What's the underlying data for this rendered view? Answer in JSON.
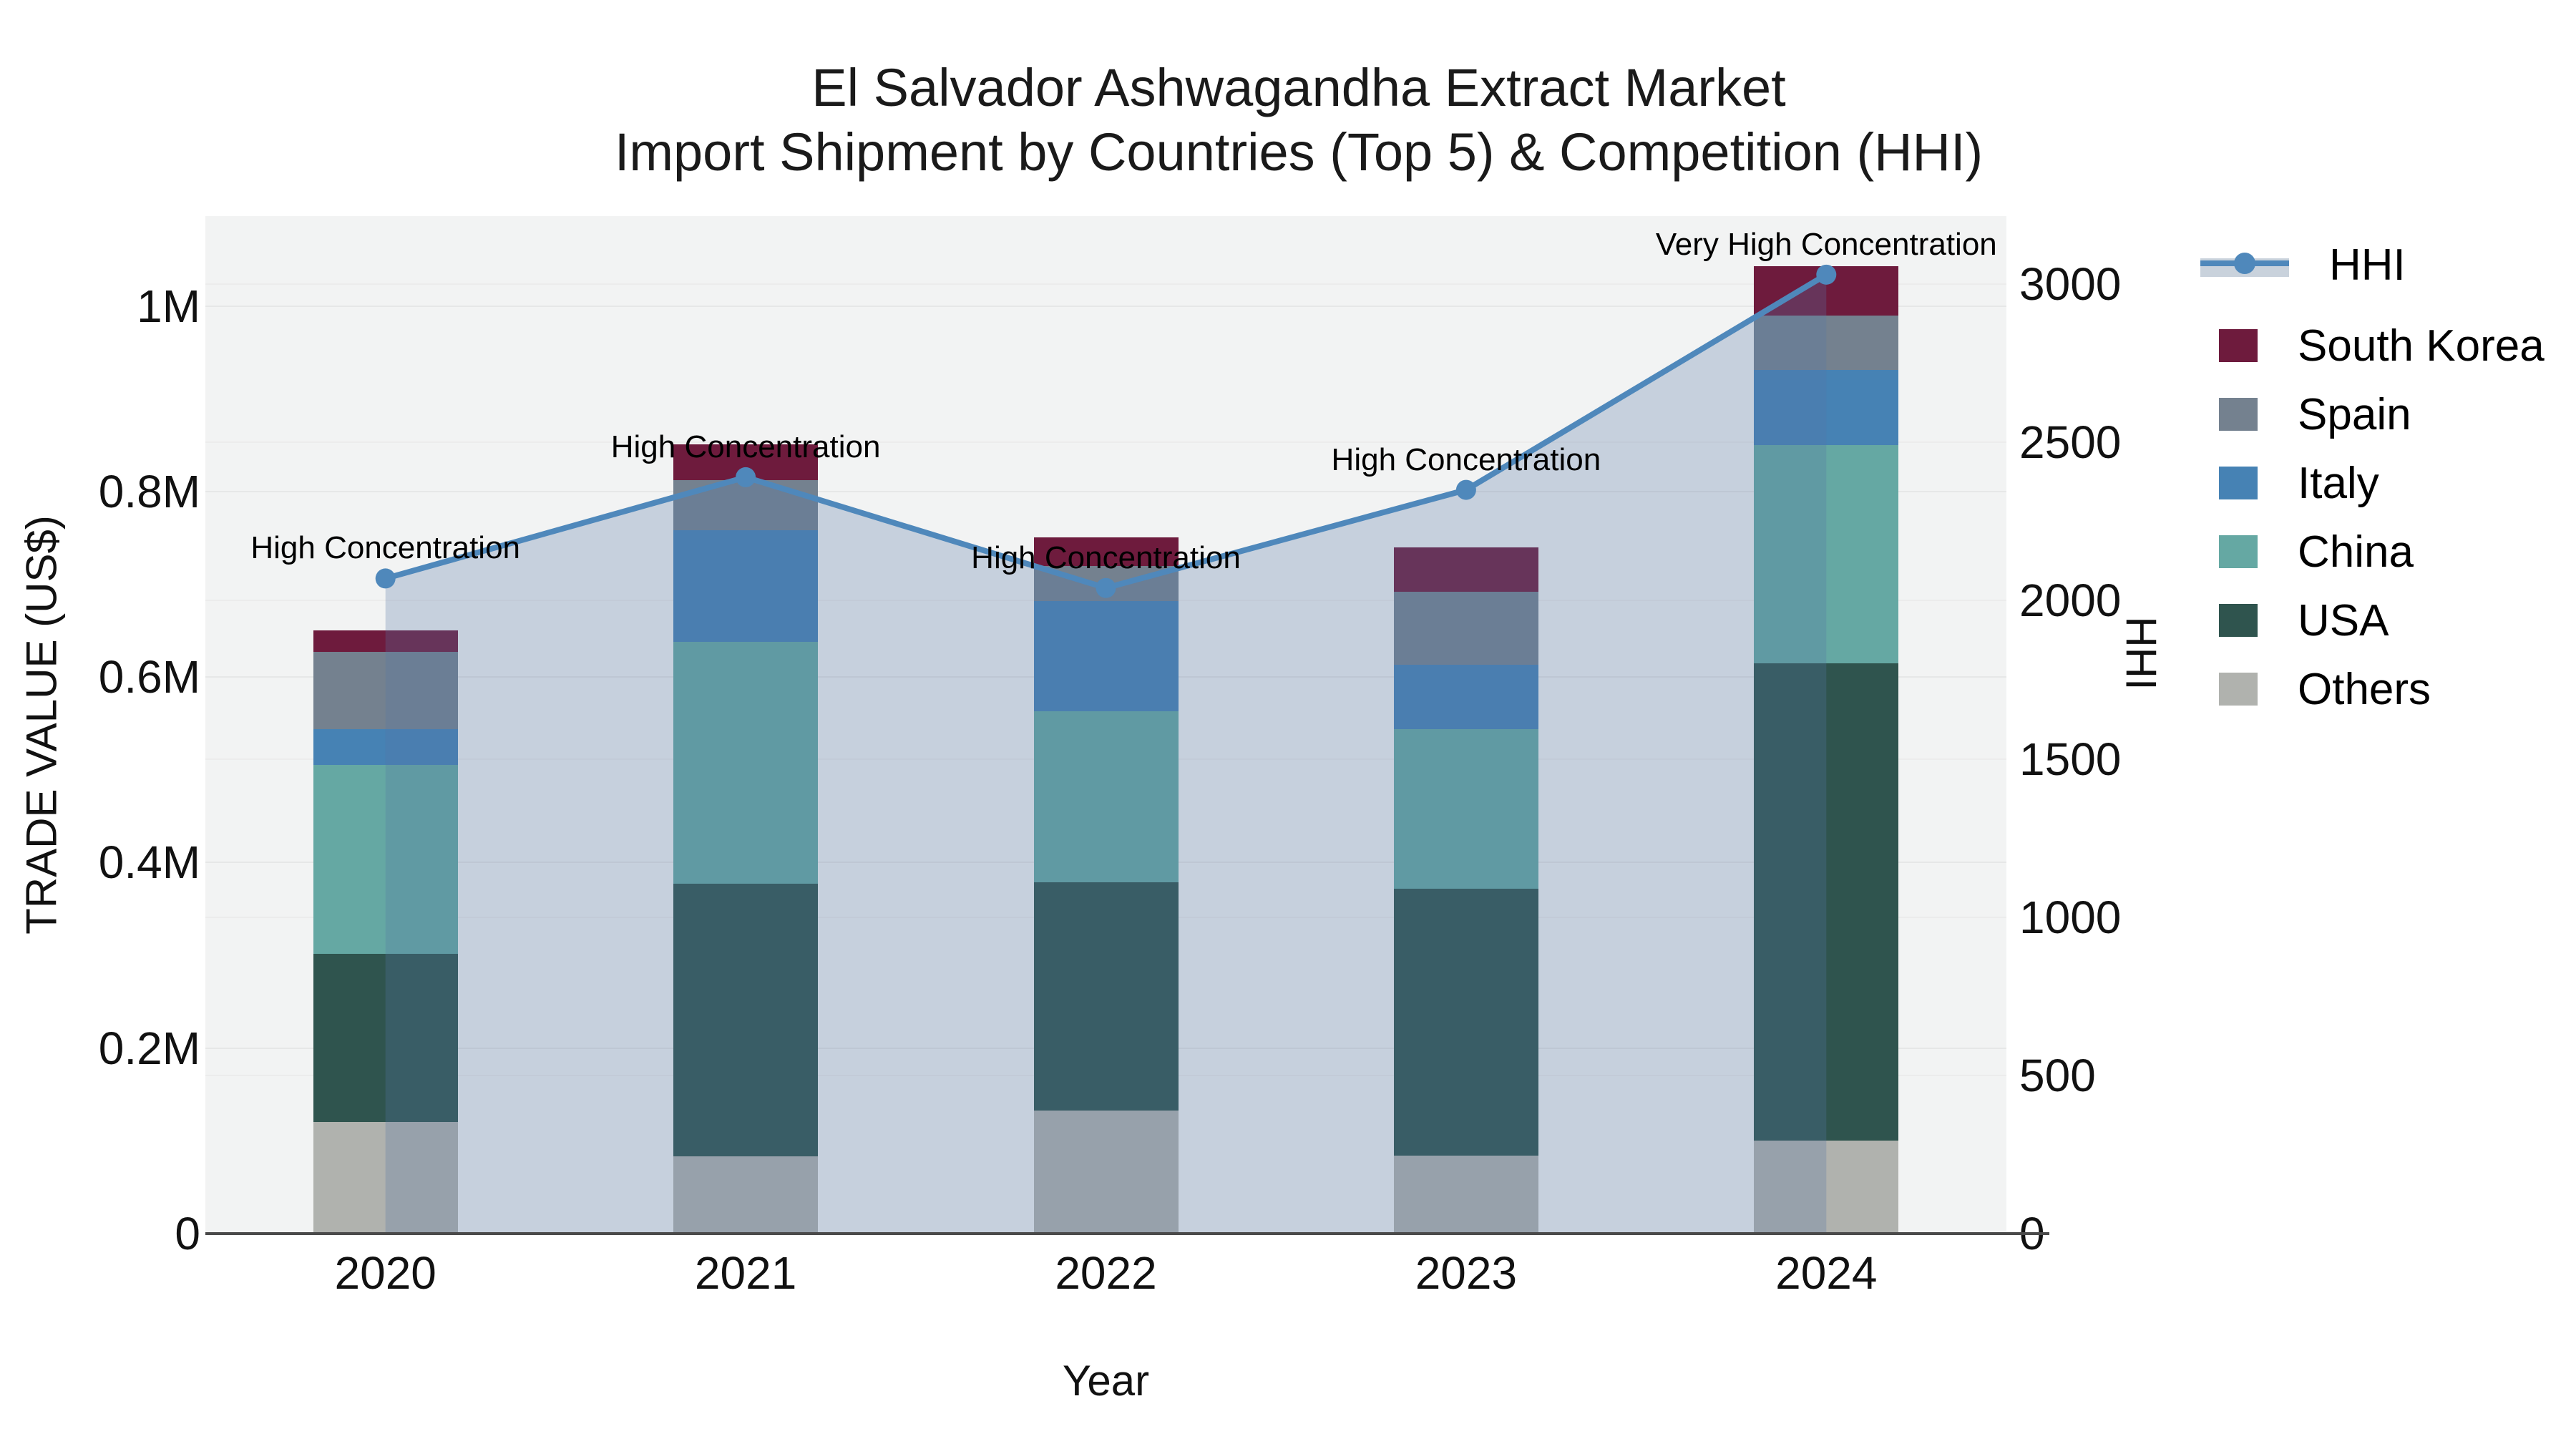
{
  "title": {
    "line1": "El Salvador Ashwagandha Extract Market",
    "line2": "Import Shipment by Countries (Top 5) & Competition (HHI)"
  },
  "legend": {
    "items": [
      {
        "id": "hhi",
        "label": "HHI",
        "type": "line",
        "color": "#4f88bb"
      },
      {
        "id": "south-korea",
        "label": "South Korea",
        "type": "swatch",
        "color": "#6e1b3d"
      },
      {
        "id": "spain",
        "label": "Spain",
        "type": "swatch",
        "color": "#74818f"
      },
      {
        "id": "italy",
        "label": "Italy",
        "type": "swatch",
        "color": "#4682b4"
      },
      {
        "id": "china",
        "label": "China",
        "type": "swatch",
        "color": "#65a8a3"
      },
      {
        "id": "usa",
        "label": "USA",
        "type": "swatch",
        "color": "#2f544e"
      },
      {
        "id": "others",
        "label": "Others",
        "type": "swatch",
        "color": "#b0b2ae"
      }
    ]
  },
  "chart_data": {
    "type": "bar",
    "subtype": "stacked-bars-with-line-overlay",
    "categories": [
      "2020",
      "2021",
      "2022",
      "2023",
      "2024"
    ],
    "series": [
      {
        "name": "Others",
        "color": "#b0b2ae",
        "values": [
          120000,
          83000,
          133000,
          84000,
          100000
        ]
      },
      {
        "name": "USA",
        "color": "#2f544e",
        "values": [
          182000,
          294000,
          246000,
          288000,
          515000
        ]
      },
      {
        "name": "China",
        "color": "#65a8a3",
        "values": [
          203000,
          261000,
          184000,
          172000,
          235000
        ]
      },
      {
        "name": "Italy",
        "color": "#4682b4",
        "values": [
          39000,
          120000,
          119000,
          69000,
          81000
        ]
      },
      {
        "name": "Spain",
        "color": "#74818f",
        "values": [
          83000,
          54000,
          38000,
          79000,
          59000
        ]
      },
      {
        "name": "South Korea",
        "color": "#6e1b3d",
        "values": [
          23000,
          39000,
          31000,
          48000,
          53000
        ]
      }
    ],
    "line_series": {
      "name": "HHI",
      "color": "#4f88bb",
      "fill_color": "rgba(86,118,164,0.28)",
      "values": [
        2070,
        2390,
        2040,
        2350,
        3030
      ]
    },
    "annotations": [
      "High Concentration",
      "High Concentration",
      "High Concentration",
      "High Concentration",
      "Very High Concentration"
    ],
    "y_left": {
      "title": "TRADE VALUE (US$)",
      "range": [
        0,
        1097000
      ],
      "ticks": [
        {
          "v": 0,
          "label": "0"
        },
        {
          "v": 200000,
          "label": "0.2M"
        },
        {
          "v": 400000,
          "label": "0.4M"
        },
        {
          "v": 600000,
          "label": "0.6M"
        },
        {
          "v": 800000,
          "label": "0.8M"
        },
        {
          "v": 1000000,
          "label": "1M"
        }
      ]
    },
    "y_right": {
      "title": "HHI",
      "range": [
        0,
        3215
      ],
      "ticks": [
        {
          "v": 0,
          "label": "0"
        },
        {
          "v": 500,
          "label": "500"
        },
        {
          "v": 1000,
          "label": "1000"
        },
        {
          "v": 1500,
          "label": "1500"
        },
        {
          "v": 2000,
          "label": "2000"
        },
        {
          "v": 2500,
          "label": "2500"
        },
        {
          "v": 3000,
          "label": "3000"
        }
      ]
    },
    "x": {
      "title": "Year"
    },
    "layout_hints": {
      "grid": true,
      "legend_position": "right",
      "plot_background": "#f2f3f3"
    }
  }
}
